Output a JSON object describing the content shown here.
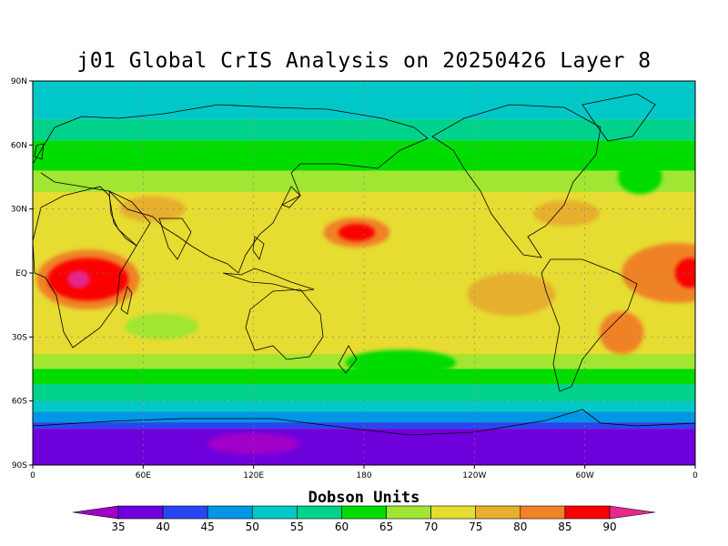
{
  "title": "j01 Global CrIS Analysis on 20250426 Layer 8",
  "axes": {
    "y_ticks": [
      "90N",
      "60N",
      "30N",
      "EQ",
      "30S",
      "60S",
      "90S"
    ],
    "x_ticks": [
      "0",
      "60E",
      "120E",
      "180",
      "120W",
      "60W",
      "0"
    ]
  },
  "colorbar": {
    "title": "Dobson Units",
    "labels": [
      "35",
      "40",
      "45",
      "50",
      "55",
      "60",
      "65",
      "70",
      "75",
      "80",
      "85",
      "90"
    ],
    "colors": [
      "#a000c8",
      "#6e00dc",
      "#2846f0",
      "#0096e6",
      "#00c8c8",
      "#00d28c",
      "#00dc00",
      "#a0e632",
      "#e6dc32",
      "#e6af2d",
      "#f08228",
      "#fa0000",
      "#e6288c"
    ]
  },
  "map": {
    "background": "#e6dc32",
    "bands": [
      {
        "lat": 90,
        "color": "#00c8c8"
      },
      {
        "lat": 72,
        "color": "#00d28c"
      },
      {
        "lat": 62,
        "color": "#00dc00"
      },
      {
        "lat": 48,
        "color": "#a0e632"
      },
      {
        "lat": 38,
        "color": "#e6dc32"
      },
      {
        "lat": 25,
        "color": "#e6dc32"
      },
      {
        "lat": -38,
        "color": "#a0e632"
      },
      {
        "lat": -45,
        "color": "#00dc00"
      },
      {
        "lat": -52,
        "color": "#00d28c"
      },
      {
        "lat": -60,
        "color": "#00c8c8"
      },
      {
        "lat": -65,
        "color": "#0096e6"
      },
      {
        "lat": -70,
        "color": "#2846f0"
      },
      {
        "lat": -73,
        "color": "#6e00dc"
      },
      {
        "lat": -90,
        "color": "#a000c8"
      }
    ],
    "features": [
      {
        "lon": 30,
        "lat": -3,
        "rlon": 28,
        "rlat": 14,
        "color": "#f08228"
      },
      {
        "lon": 30,
        "lat": -3,
        "rlon": 22,
        "rlat": 10,
        "color": "#fa0000"
      },
      {
        "lon": 25,
        "lat": -3,
        "rlon": 6,
        "rlat": 4,
        "color": "#e6288c"
      },
      {
        "lon": 176,
        "lat": 19,
        "rlon": 18,
        "rlat": 7,
        "color": "#f08228"
      },
      {
        "lon": 176,
        "lat": 19,
        "rlon": 10,
        "rlat": 4,
        "color": "#fa0000"
      },
      {
        "lon": 350,
        "lat": 0,
        "rlon": 30,
        "rlat": 14,
        "color": "#f08228"
      },
      {
        "lon": 357,
        "lat": 0,
        "rlon": 8,
        "rlat": 7,
        "color": "#fa0000"
      },
      {
        "lon": 260,
        "lat": -10,
        "rlon": 24,
        "rlat": 10,
        "color": "#e6af2d"
      },
      {
        "lon": 320,
        "lat": -28,
        "rlon": 12,
        "rlat": 10,
        "color": "#f08228"
      },
      {
        "lon": 70,
        "lat": -25,
        "rlon": 20,
        "rlat": 6,
        "color": "#a0e632"
      },
      {
        "lon": 200,
        "lat": -42,
        "rlon": 30,
        "rlat": 6,
        "color": "#00dc00"
      },
      {
        "lon": 330,
        "lat": 45,
        "rlon": 12,
        "rlat": 8,
        "color": "#00dc00"
      },
      {
        "lon": 65,
        "lat": 30,
        "rlon": 18,
        "rlat": 6,
        "color": "#e6af2d"
      },
      {
        "lon": 290,
        "lat": 28,
        "rlon": 18,
        "rlat": 6,
        "color": "#e6af2d"
      },
      {
        "lon": 120,
        "lat": -80,
        "rlon": 25,
        "rlat": 5,
        "color": "#a000c8"
      }
    ]
  }
}
